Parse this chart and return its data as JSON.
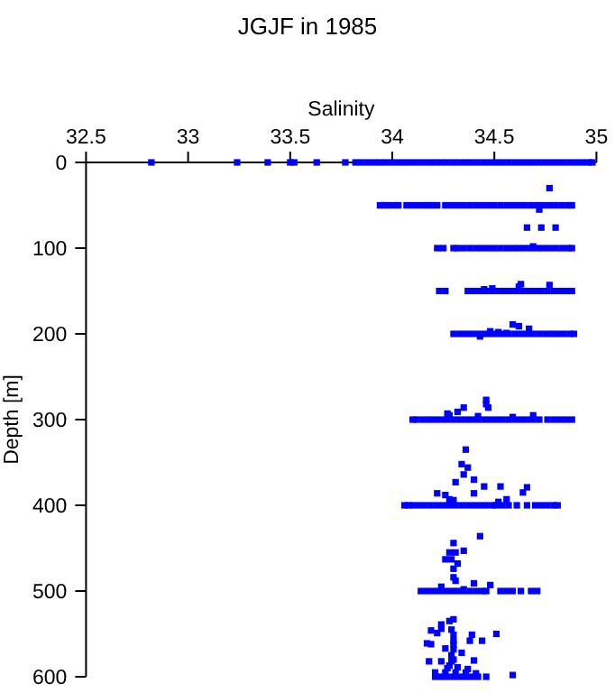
{
  "chart_data": {
    "type": "scatter",
    "title": "JGJF in 1985",
    "xlabel": "Salinity",
    "ylabel": "Depth [m]",
    "color": "#0000ff",
    "marker": "square",
    "xlim": [
      32.5,
      35
    ],
    "xticks": [
      32.5,
      33,
      33.5,
      34,
      34.5,
      35
    ],
    "ylim": [
      600,
      0
    ],
    "yticks": [
      0,
      100,
      200,
      300,
      400,
      500,
      600
    ],
    "x": [
      32.82,
      33.24,
      33.39,
      33.5,
      33.52,
      33.63,
      33.77,
      33.82,
      33.85,
      33.88,
      33.91,
      33.94,
      33.97,
      34,
      34.03,
      34.06,
      34.09,
      34.12,
      34.15,
      34.18,
      34.21,
      34.24,
      34.27,
      34.3,
      34.33,
      34.36,
      34.39,
      34.42,
      34.45,
      34.48,
      34.51,
      34.54,
      34.57,
      34.6,
      34.63,
      34.66,
      34.69,
      34.72,
      34.75,
      34.78,
      34.81,
      34.84,
      34.87,
      34.9,
      34.93,
      34.96,
      34.98,
      33.94,
      33.96,
      33.98,
      34.01,
      34.03,
      34.07,
      34.1,
      34.13,
      34.16,
      34.18,
      34.2,
      34.22,
      34.26,
      34.29,
      34.32,
      34.35,
      34.38,
      34.41,
      34.44,
      34.47,
      34.5,
      34.53,
      34.56,
      34.59,
      34.62,
      34.65,
      34.68,
      34.71,
      34.74,
      34.77,
      34.8,
      34.83,
      34.86,
      34.88,
      34.72,
      34.77,
      34.66,
      34.73,
      34.8,
      34.22,
      34.25,
      34.3,
      34.32,
      34.35,
      34.38,
      34.41,
      34.44,
      34.47,
      34.5,
      34.53,
      34.56,
      34.59,
      34.62,
      34.65,
      34.68,
      34.71,
      34.74,
      34.77,
      34.8,
      34.83,
      34.86,
      34.88,
      34.69,
      34.23,
      34.26,
      34.37,
      34.4,
      34.43,
      34.46,
      34.49,
      34.52,
      34.55,
      34.58,
      34.61,
      34.64,
      34.67,
      34.7,
      34.73,
      34.76,
      34.79,
      34.82,
      34.85,
      34.88,
      34.45,
      34.49,
      34.62,
      34.63,
      34.77,
      34.3,
      34.33,
      34.36,
      34.39,
      34.42,
      34.45,
      34.48,
      34.51,
      34.54,
      34.57,
      34.6,
      34.63,
      34.66,
      34.69,
      34.72,
      34.75,
      34.78,
      34.81,
      34.84,
      34.87,
      34.89,
      34.48,
      34.52,
      34.56,
      34.59,
      34.62,
      34.67,
      34.43,
      34.1,
      34.12,
      34.15,
      34.18,
      34.21,
      34.24,
      34.27,
      34.3,
      34.33,
      34.36,
      34.39,
      34.42,
      34.45,
      34.48,
      34.51,
      34.54,
      34.57,
      34.6,
      34.63,
      34.66,
      34.69,
      34.72,
      34.76,
      34.79,
      34.82,
      34.85,
      34.88,
      34.27,
      34.28,
      34.32,
      34.35,
      34.42,
      34.46,
      34.46,
      34.47,
      34.59,
      34.69,
      34.06,
      34.08,
      34.1,
      34.13,
      34.16,
      34.19,
      34.22,
      34.25,
      34.28,
      34.31,
      34.34,
      34.37,
      34.4,
      34.43,
      34.46,
      34.49,
      34.51,
      34.54,
      34.57,
      34.61,
      34.66,
      34.7,
      34.73,
      34.76,
      34.79,
      34.81,
      34.36,
      34.34,
      34.37,
      34.35,
      34.31,
      34.4,
      34.45,
      34.53,
      34.66,
      34.64,
      34.4,
      34.22,
      34.26,
      34.28,
      34.3,
      34.56,
      34.52,
      34.14,
      34.17,
      34.2,
      34.23,
      34.26,
      34.29,
      34.32,
      34.35,
      34.38,
      34.41,
      34.44,
      34.46,
      34.53,
      34.56,
      34.59,
      34.63,
      34.68,
      34.71,
      34.43,
      34.3,
      34.35,
      34.28,
      34.31,
      34.26,
      34.29,
      34.32,
      34.3,
      34.3,
      34.31,
      34.4,
      34.48,
      34.24,
      34.35,
      34.3,
      34.28,
      34.24,
      34.24,
      34.29,
      34.19,
      34.22,
      34.3,
      34.39,
      34.51,
      34.44,
      34.38,
      34.3,
      34.17,
      34.19,
      34.3,
      34.26,
      34.3,
      34.34,
      34.29,
      34.18,
      34.24,
      34.29,
      34.4,
      34.3,
      34.28,
      34.32,
      34.27,
      34.37,
      34.21,
      34.26,
      34.31,
      34.36,
      34.41,
      34.59,
      34.21,
      34.24,
      34.27,
      34.3,
      34.33,
      34.36,
      34.39,
      34.42,
      34.46
    ],
    "values": [
      0,
      0,
      0,
      0,
      0,
      0,
      0,
      0,
      0,
      0,
      0,
      0,
      0,
      0,
      0,
      0,
      0,
      0,
      0,
      0,
      0,
      0,
      0,
      0,
      0,
      0,
      0,
      0,
      0,
      0,
      0,
      0,
      0,
      0,
      0,
      0,
      0,
      0,
      0,
      0,
      0,
      0,
      0,
      0,
      0,
      0,
      0,
      50,
      50,
      50,
      50,
      50,
      50,
      50,
      50,
      50,
      50,
      50,
      50,
      50,
      50,
      50,
      50,
      50,
      50,
      50,
      50,
      50,
      50,
      50,
      50,
      50,
      50,
      50,
      50,
      50,
      50,
      50,
      50,
      50,
      50,
      55,
      30,
      76,
      76,
      76,
      100,
      100,
      100,
      100,
      100,
      100,
      100,
      100,
      100,
      100,
      100,
      100,
      100,
      100,
      100,
      100,
      100,
      100,
      100,
      100,
      100,
      100,
      100,
      98,
      150,
      150,
      150,
      150,
      150,
      150,
      150,
      150,
      150,
      150,
      150,
      150,
      150,
      150,
      150,
      150,
      150,
      150,
      150,
      150,
      148,
      147,
      145,
      142,
      143,
      200,
      200,
      200,
      200,
      200,
      200,
      200,
      200,
      200,
      200,
      200,
      200,
      200,
      200,
      200,
      200,
      200,
      200,
      200,
      200,
      200,
      197,
      198,
      199,
      189,
      191,
      194,
      203,
      300,
      300,
      300,
      300,
      300,
      300,
      300,
      300,
      300,
      300,
      300,
      300,
      300,
      300,
      300,
      300,
      300,
      300,
      300,
      300,
      300,
      300,
      300,
      300,
      300,
      300,
      300,
      293,
      295,
      291,
      286,
      296,
      277,
      282,
      286,
      297,
      295,
      400,
      400,
      400,
      400,
      400,
      400,
      400,
      400,
      400,
      400,
      400,
      400,
      400,
      400,
      400,
      400,
      400,
      400,
      400,
      400,
      400,
      400,
      400,
      400,
      400,
      400,
      335,
      352,
      356,
      364,
      373,
      370,
      378,
      378,
      379,
      385,
      386,
      386,
      388,
      393,
      394,
      393,
      396,
      500,
      500,
      500,
      500,
      500,
      500,
      500,
      500,
      500,
      500,
      500,
      500,
      500,
      500,
      500,
      500,
      500,
      500,
      436,
      444,
      453,
      455,
      455,
      463,
      463,
      468,
      474,
      484,
      488,
      491,
      493,
      495,
      498,
      533,
      535,
      539,
      544,
      545,
      546,
      549,
      551,
      551,
      550,
      558,
      558,
      558,
      561,
      562,
      562,
      567,
      568,
      572,
      575,
      582,
      582,
      582,
      581,
      580,
      587,
      589,
      590,
      591,
      595,
      595,
      595,
      595,
      596,
      598,
      600,
      600,
      600,
      600,
      600,
      600,
      600,
      600,
      600
    ]
  }
}
